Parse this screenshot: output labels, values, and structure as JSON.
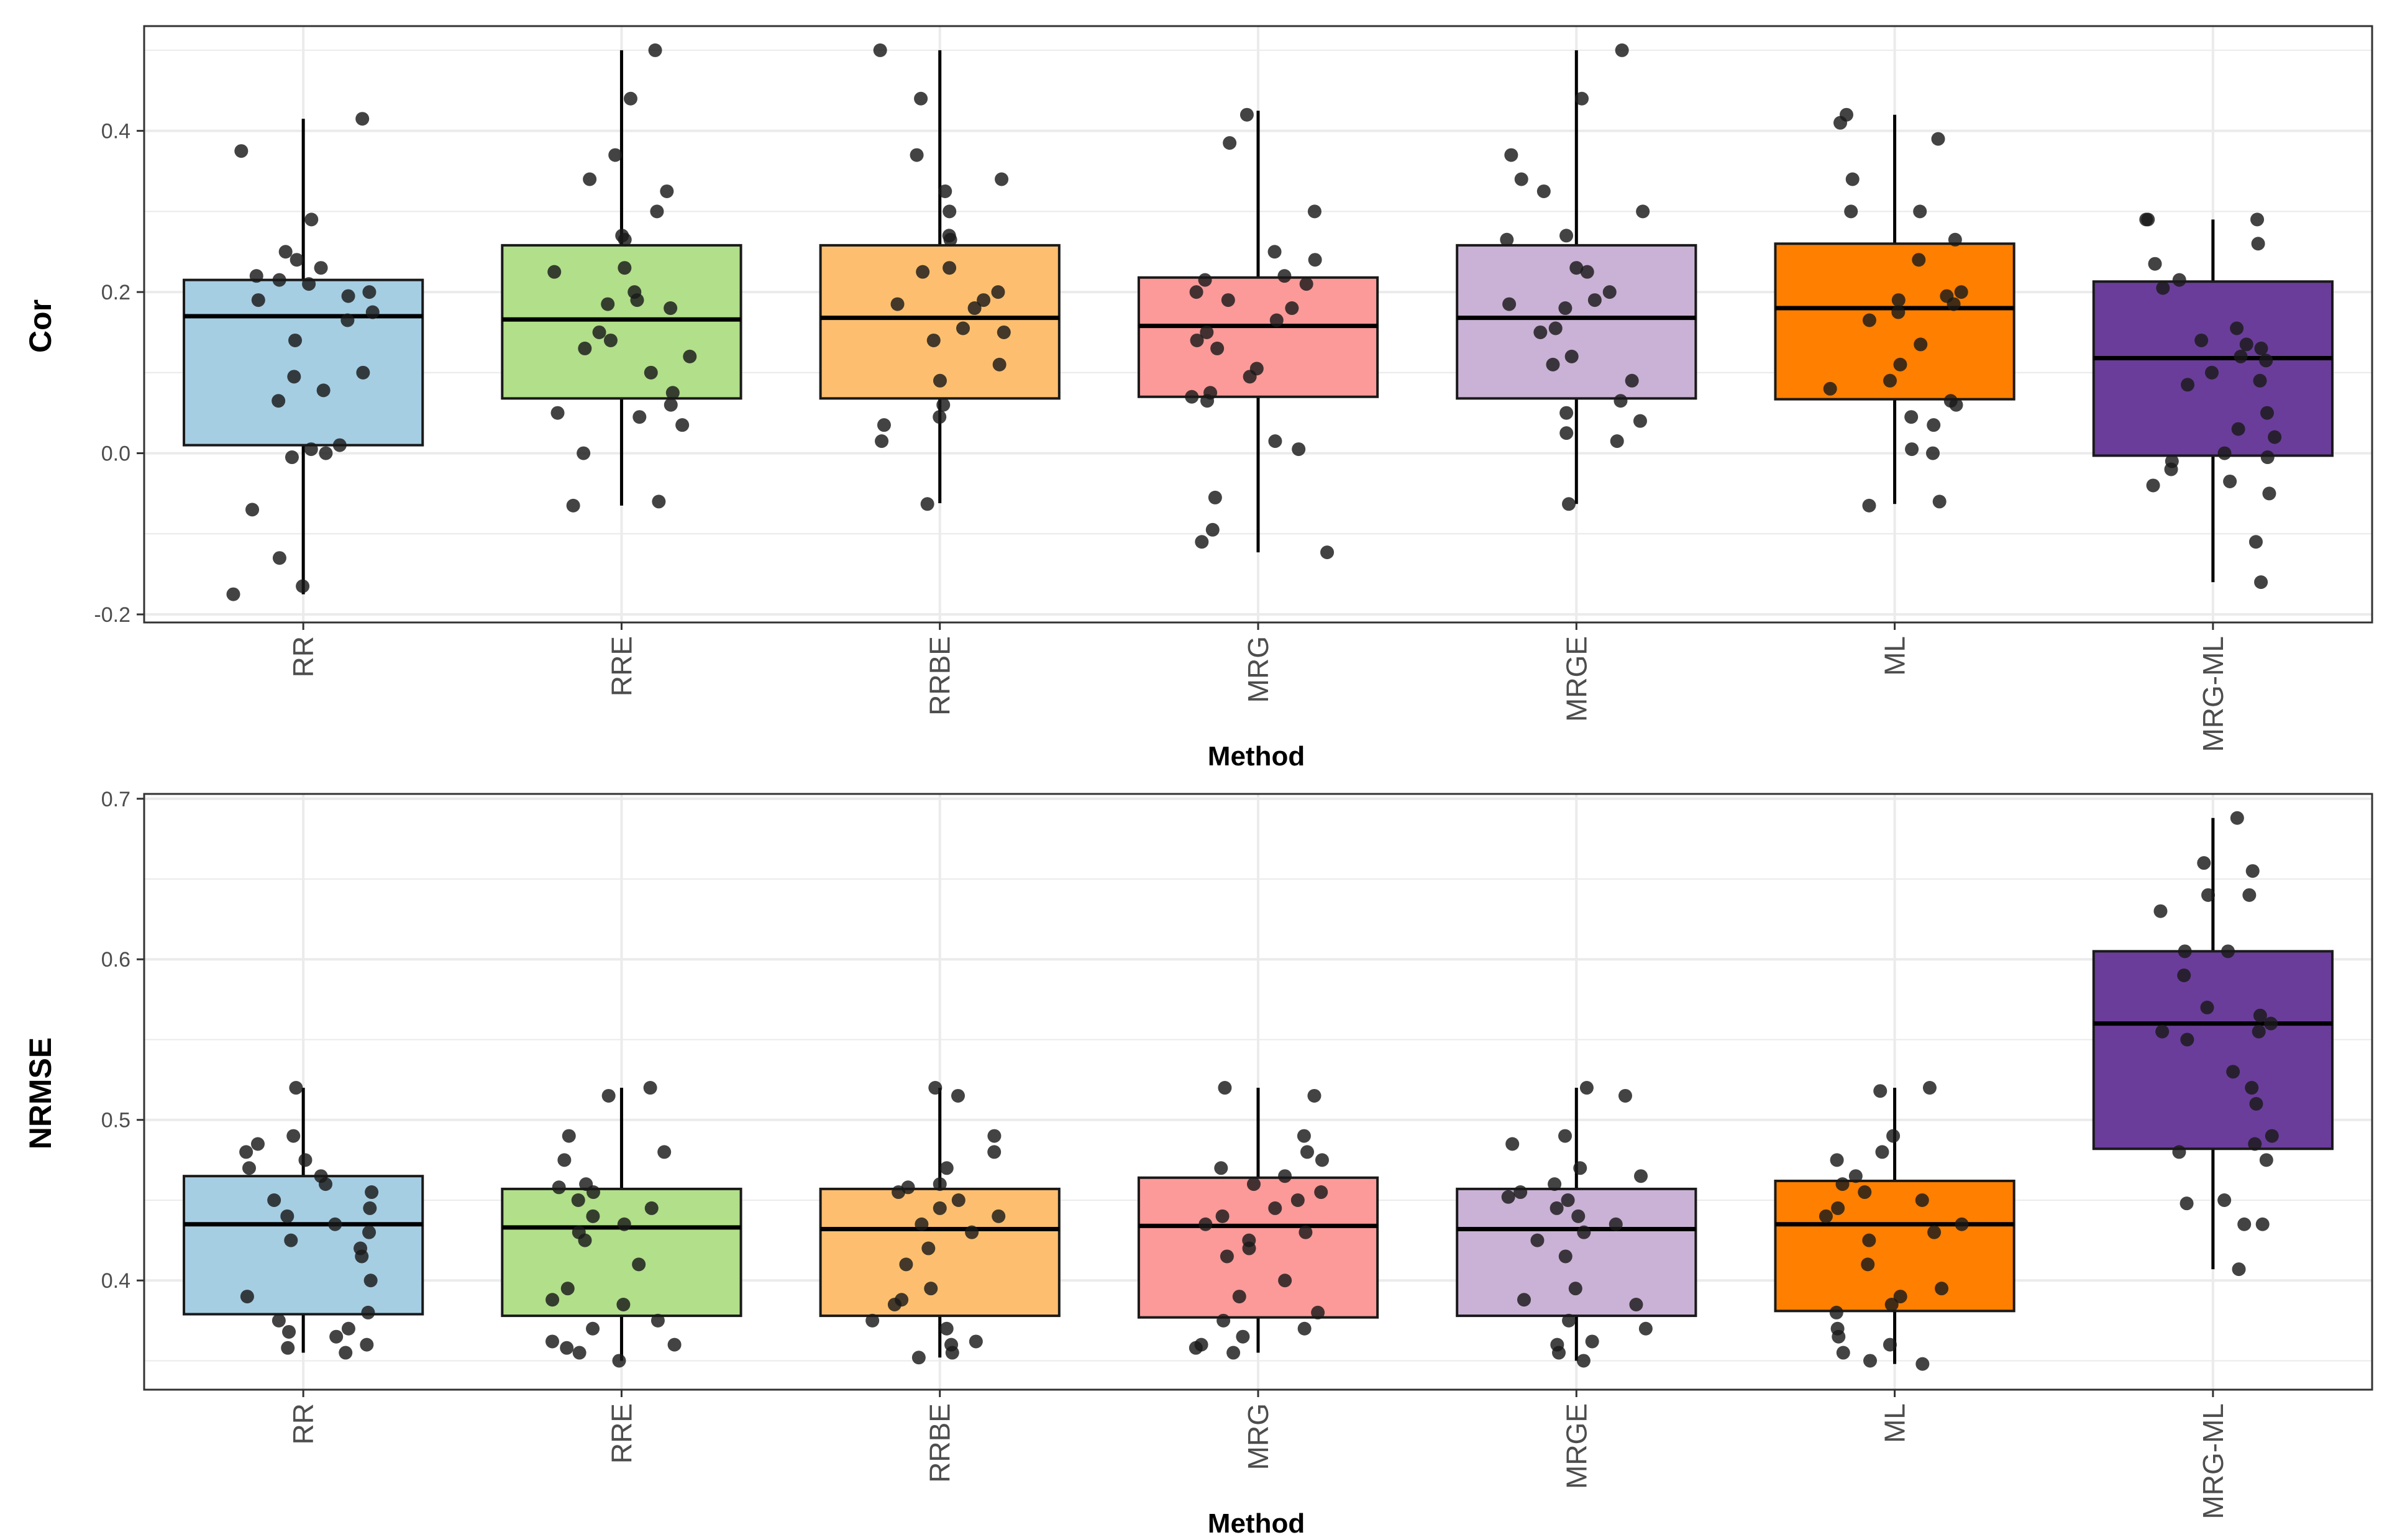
{
  "colors": {
    "RR": "#a6cee3",
    "RRE": "#b2df8a",
    "RRBE": "#fdbf6f",
    "MRG": "#fb9a99",
    "MRGE": "#cab2d6",
    "ML": "#ff7f00",
    "MRG-ML": "#6a3d9a",
    "point": "#1a1a1a",
    "grid": "#ebebeb",
    "panel_border": "#333333"
  },
  "chart_data": [
    {
      "type": "box",
      "title": "",
      "xlabel": "Method",
      "ylabel": "Cor",
      "ylim": [
        -0.21,
        0.53
      ],
      "yticks": [
        -0.2,
        0.0,
        0.2,
        0.4
      ],
      "ytick_labels": [
        "-0.2",
        "0.0",
        "0.2",
        "0.4"
      ],
      "categories": [
        "RR",
        "RRE",
        "RRBE",
        "MRG",
        "MRGE",
        "ML",
        "MRG-ML"
      ],
      "boxes": [
        {
          "name": "RR",
          "q1": 0.01,
          "median": 0.17,
          "q3": 0.215,
          "whisker_low": -0.175,
          "whisker_high": 0.415
        },
        {
          "name": "RRE",
          "q1": 0.068,
          "median": 0.166,
          "q3": 0.258,
          "whisker_low": -0.065,
          "whisker_high": 0.5
        },
        {
          "name": "RRBE",
          "q1": 0.068,
          "median": 0.168,
          "q3": 0.258,
          "whisker_low": -0.062,
          "whisker_high": 0.5
        },
        {
          "name": "MRG",
          "q1": 0.07,
          "median": 0.158,
          "q3": 0.218,
          "whisker_low": -0.123,
          "whisker_high": 0.425
        },
        {
          "name": "MRGE",
          "q1": 0.068,
          "median": 0.168,
          "q3": 0.258,
          "whisker_low": -0.063,
          "whisker_high": 0.5
        },
        {
          "name": "ML",
          "q1": 0.067,
          "median": 0.18,
          "q3": 0.26,
          "whisker_low": -0.063,
          "whisker_high": 0.42
        },
        {
          "name": "MRG-ML",
          "q1": -0.003,
          "median": 0.118,
          "q3": 0.213,
          "whisker_low": -0.16,
          "whisker_high": 0.29
        }
      ],
      "points": [
        [
          0.415,
          0.375,
          0.29,
          0.25,
          0.24,
          0.23,
          0.22,
          0.215,
          0.21,
          0.2,
          0.195,
          0.19,
          0.175,
          0.165,
          0.14,
          0.1,
          0.095,
          0.078,
          0.065,
          0.01,
          0.005,
          0.0,
          -0.005,
          -0.07,
          -0.13,
          -0.165,
          -0.175
        ],
        [
          0.5,
          0.44,
          0.37,
          0.34,
          0.325,
          0.3,
          0.27,
          0.265,
          0.23,
          0.225,
          0.2,
          0.19,
          0.185,
          0.18,
          0.15,
          0.14,
          0.13,
          0.12,
          0.1,
          0.075,
          0.06,
          0.05,
          0.045,
          0.035,
          0.0,
          -0.06,
          -0.065
        ],
        [
          0.5,
          0.44,
          0.37,
          0.34,
          0.325,
          0.3,
          0.27,
          0.265,
          0.23,
          0.225,
          0.2,
          0.19,
          0.185,
          0.18,
          0.155,
          0.15,
          0.14,
          0.11,
          0.09,
          0.06,
          0.045,
          0.035,
          0.015,
          -0.063
        ],
        [
          0.42,
          0.385,
          0.3,
          0.25,
          0.24,
          0.22,
          0.215,
          0.21,
          0.2,
          0.19,
          0.18,
          0.165,
          0.15,
          0.14,
          0.13,
          0.105,
          0.095,
          0.075,
          0.07,
          0.065,
          0.015,
          0.005,
          -0.055,
          -0.095,
          -0.11,
          -0.123
        ],
        [
          0.5,
          0.44,
          0.37,
          0.34,
          0.325,
          0.3,
          0.27,
          0.265,
          0.23,
          0.225,
          0.2,
          0.19,
          0.185,
          0.18,
          0.155,
          0.15,
          0.12,
          0.11,
          0.09,
          0.065,
          0.05,
          0.04,
          0.025,
          0.015,
          -0.063
        ],
        [
          0.42,
          0.41,
          0.39,
          0.34,
          0.3,
          0.3,
          0.265,
          0.24,
          0.2,
          0.195,
          0.19,
          0.185,
          0.175,
          0.165,
          0.135,
          0.11,
          0.09,
          0.08,
          0.065,
          0.06,
          0.045,
          0.035,
          0.005,
          0.0,
          -0.06,
          -0.065
        ],
        [
          0.29,
          0.29,
          0.29,
          0.26,
          0.235,
          0.215,
          0.205,
          0.155,
          0.14,
          0.135,
          0.13,
          0.12,
          0.115,
          0.1,
          0.09,
          0.085,
          0.05,
          0.03,
          0.02,
          0.0,
          -0.005,
          -0.01,
          -0.02,
          -0.035,
          -0.04,
          -0.05,
          -0.11,
          -0.16
        ]
      ]
    },
    {
      "type": "box",
      "title": "",
      "xlabel": "Method",
      "ylabel": "NRMSE",
      "ylim": [
        0.332,
        0.703
      ],
      "yticks": [
        0.4,
        0.5,
        0.6,
        0.7
      ],
      "ytick_labels": [
        "0.4",
        "0.5",
        "0.6",
        "0.7"
      ],
      "categories": [
        "RR",
        "RRE",
        "RRBE",
        "MRG",
        "MRGE",
        "ML",
        "MRG-ML"
      ],
      "boxes": [
        {
          "name": "RR",
          "q1": 0.379,
          "median": 0.435,
          "q3": 0.465,
          "whisker_low": 0.355,
          "whisker_high": 0.52
        },
        {
          "name": "RRE",
          "q1": 0.378,
          "median": 0.433,
          "q3": 0.457,
          "whisker_low": 0.35,
          "whisker_high": 0.52
        },
        {
          "name": "RRBE",
          "q1": 0.378,
          "median": 0.432,
          "q3": 0.457,
          "whisker_low": 0.352,
          "whisker_high": 0.52
        },
        {
          "name": "MRG",
          "q1": 0.377,
          "median": 0.434,
          "q3": 0.464,
          "whisker_low": 0.355,
          "whisker_high": 0.52
        },
        {
          "name": "MRGE",
          "q1": 0.378,
          "median": 0.432,
          "q3": 0.457,
          "whisker_low": 0.35,
          "whisker_high": 0.52
        },
        {
          "name": "ML",
          "q1": 0.381,
          "median": 0.435,
          "q3": 0.462,
          "whisker_low": 0.348,
          "whisker_high": 0.52
        },
        {
          "name": "MRG-ML",
          "q1": 0.482,
          "median": 0.56,
          "q3": 0.605,
          "whisker_low": 0.407,
          "whisker_high": 0.688
        }
      ],
      "points": [
        [
          0.52,
          0.49,
          0.485,
          0.48,
          0.475,
          0.47,
          0.465,
          0.46,
          0.455,
          0.45,
          0.445,
          0.44,
          0.435,
          0.43,
          0.425,
          0.42,
          0.415,
          0.4,
          0.39,
          0.38,
          0.375,
          0.37,
          0.368,
          0.365,
          0.36,
          0.358,
          0.355
        ],
        [
          0.52,
          0.515,
          0.49,
          0.48,
          0.475,
          0.46,
          0.458,
          0.455,
          0.45,
          0.445,
          0.44,
          0.435,
          0.43,
          0.425,
          0.41,
          0.395,
          0.388,
          0.385,
          0.375,
          0.37,
          0.362,
          0.36,
          0.358,
          0.355,
          0.35
        ],
        [
          0.52,
          0.515,
          0.49,
          0.48,
          0.47,
          0.46,
          0.458,
          0.455,
          0.45,
          0.445,
          0.44,
          0.435,
          0.43,
          0.42,
          0.41,
          0.395,
          0.388,
          0.385,
          0.375,
          0.37,
          0.362,
          0.36,
          0.355,
          0.352
        ],
        [
          0.52,
          0.515,
          0.49,
          0.48,
          0.475,
          0.47,
          0.465,
          0.46,
          0.455,
          0.45,
          0.445,
          0.44,
          0.435,
          0.43,
          0.425,
          0.42,
          0.415,
          0.4,
          0.39,
          0.38,
          0.375,
          0.37,
          0.365,
          0.36,
          0.358,
          0.355
        ],
        [
          0.52,
          0.515,
          0.49,
          0.485,
          0.47,
          0.465,
          0.46,
          0.455,
          0.452,
          0.45,
          0.445,
          0.44,
          0.435,
          0.43,
          0.425,
          0.415,
          0.395,
          0.388,
          0.385,
          0.375,
          0.37,
          0.362,
          0.36,
          0.355,
          0.35
        ],
        [
          0.52,
          0.518,
          0.49,
          0.48,
          0.475,
          0.465,
          0.46,
          0.455,
          0.45,
          0.445,
          0.44,
          0.435,
          0.43,
          0.425,
          0.41,
          0.395,
          0.39,
          0.385,
          0.38,
          0.37,
          0.365,
          0.36,
          0.355,
          0.35,
          0.348
        ],
        [
          0.688,
          0.66,
          0.655,
          0.64,
          0.64,
          0.63,
          0.605,
          0.605,
          0.59,
          0.57,
          0.565,
          0.56,
          0.555,
          0.555,
          0.55,
          0.53,
          0.52,
          0.51,
          0.49,
          0.485,
          0.48,
          0.475,
          0.45,
          0.448,
          0.435,
          0.435,
          0.407
        ]
      ]
    }
  ]
}
